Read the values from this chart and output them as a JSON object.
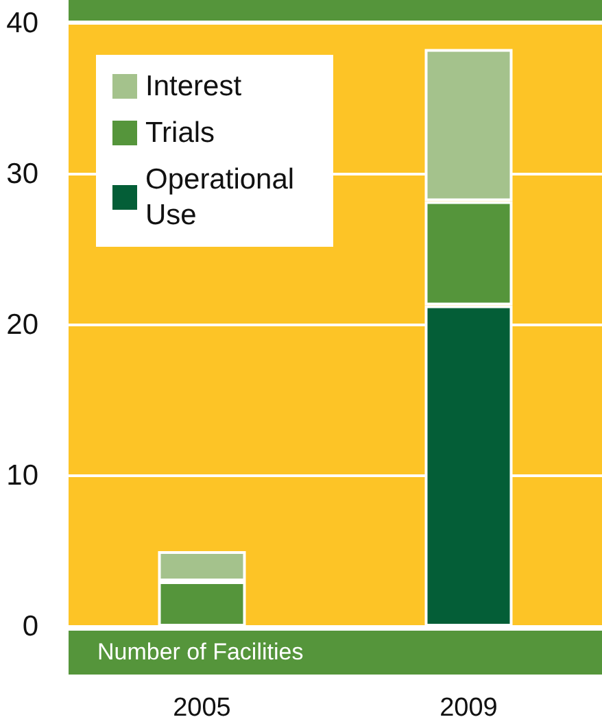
{
  "chart_data": {
    "type": "bar",
    "stacked": true,
    "annotations": [
      "Number of Facilities"
    ],
    "categories": [
      "2005",
      "2009"
    ],
    "series": [
      {
        "name": "Operational Use",
        "color": "#045e37",
        "values": [
          0,
          21.3
        ]
      },
      {
        "name": "Trials",
        "color": "#55953b",
        "values": [
          3,
          6.9
        ]
      },
      {
        "name": "Interest",
        "color": "#a4c28c",
        "values": [
          2,
          10.1
        ]
      }
    ],
    "ylim": [
      0,
      40
    ],
    "yticks": [
      0,
      10,
      20,
      30,
      40
    ],
    "grid": "y",
    "legend": "top left"
  }
}
